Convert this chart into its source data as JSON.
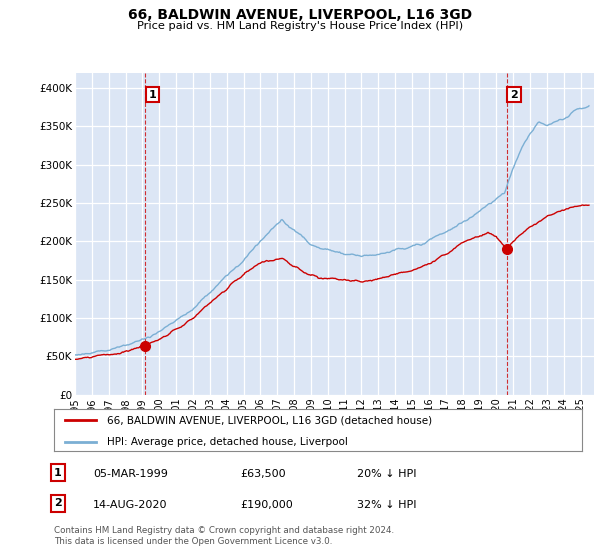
{
  "title": "66, BALDWIN AVENUE, LIVERPOOL, L16 3GD",
  "subtitle": "Price paid vs. HM Land Registry's House Price Index (HPI)",
  "ylabel_ticks": [
    "£0",
    "£50K",
    "£100K",
    "£150K",
    "£200K",
    "£250K",
    "£300K",
    "£350K",
    "£400K"
  ],
  "yticks": [
    0,
    50000,
    100000,
    150000,
    200000,
    250000,
    300000,
    350000,
    400000
  ],
  "ylim": [
    0,
    420000
  ],
  "xlim_start": 1995.0,
  "xlim_end": 2025.8,
  "background_color": "#dce6f5",
  "grid_color": "#ffffff",
  "red_line_color": "#cc0000",
  "blue_line_color": "#7bafd4",
  "ann1_x": 1999.17,
  "ann1_y": 63500,
  "ann2_x": 2020.62,
  "ann2_y": 190000,
  "ann1_date": "05-MAR-1999",
  "ann1_price": "£63,500",
  "ann1_pct": "20% ↓ HPI",
  "ann2_date": "14-AUG-2020",
  "ann2_price": "£190,000",
  "ann2_pct": "32% ↓ HPI",
  "legend_line1": "66, BALDWIN AVENUE, LIVERPOOL, L16 3GD (detached house)",
  "legend_line2": "HPI: Average price, detached house, Liverpool",
  "footer": "Contains HM Land Registry data © Crown copyright and database right 2024.\nThis data is licensed under the Open Government Licence v3.0."
}
